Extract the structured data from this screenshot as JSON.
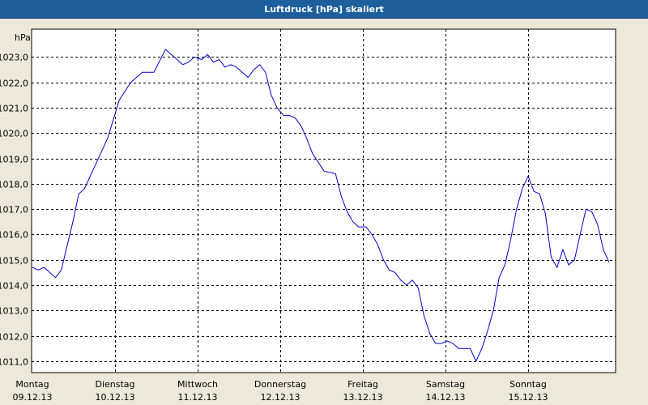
{
  "window": {
    "title": "Luftdruck [hPa] skaliert"
  },
  "colors": {
    "title_bar": "#1c5f9c",
    "background": "#ece9d8",
    "plot_background": "#ffffff",
    "line": "#0000cc",
    "grid": "#000000"
  },
  "chart_data": {
    "type": "line",
    "title": "Luftdruck [hPa] skaliert",
    "ylabel": "hPa",
    "xlabel": "",
    "ylim": [
      1010.55,
      1024.1
    ],
    "xlim": [
      "2013-12-09 00:00",
      "2013-12-16 00:00"
    ],
    "grid": true,
    "legend": "none",
    "y_ticks": [
      "1011,0",
      "1012,0",
      "1013,0",
      "1014,0",
      "1015,0",
      "1016,0",
      "1017,0",
      "1018,0",
      "1019,0",
      "1020,0",
      "1021,0",
      "1022,0",
      "1023,0"
    ],
    "x_ticks": [
      {
        "day": "Montag",
        "date": "09.12.13"
      },
      {
        "day": "Dienstag",
        "date": "10.12.13"
      },
      {
        "day": "Mittwoch",
        "date": "11.12.13"
      },
      {
        "day": "Donnerstag",
        "date": "12.12.13"
      },
      {
        "day": "Freitag",
        "date": "13.12.13"
      },
      {
        "day": "Samstag",
        "date": "14.12.13"
      },
      {
        "day": "Sonntag",
        "date": "15.12.13"
      }
    ],
    "series": [
      {
        "x": [
          "2013-12-09 00:00",
          "2013-12-09 01:41",
          "2013-12-09 03:22",
          "2013-12-09 05:02",
          "2013-12-09 06:43",
          "2013-12-09 08:24",
          "2013-12-09 11:46",
          "2013-12-09 13:27",
          "2013-12-09 15:07",
          "2013-12-09 18:29",
          "2013-12-09 21:51",
          "2013-12-10 01:13",
          "2013-12-10 04:34",
          "2013-12-10 07:56",
          "2013-12-10 09:37",
          "2013-12-10 11:18",
          "2013-12-10 14:40",
          "2013-12-10 18:01",
          "2013-12-10 19:42",
          "2013-12-10 21:23",
          "2013-12-10 23:04",
          "2013-12-11 01:13",
          "2013-12-11 02:54",
          "2013-12-11 04:34",
          "2013-12-11 06:15",
          "2013-12-11 07:56",
          "2013-12-11 09:37",
          "2013-12-11 11:18",
          "2013-12-11 12:58",
          "2013-12-11 14:39",
          "2013-12-11 16:20",
          "2013-12-11 18:01",
          "2013-12-11 19:42",
          "2013-12-11 21:23",
          "2013-12-11 23:04",
          "2013-12-12 00:56",
          "2013-12-12 02:37",
          "2013-12-12 04:18",
          "2013-12-12 05:58",
          "2013-12-12 07:39",
          "2013-12-12 09:20",
          "2013-12-12 12:42",
          "2013-12-12 16:03",
          "2013-12-12 17:44",
          "2013-12-12 19:25",
          "2013-12-12 21:06",
          "2013-12-12 22:47",
          "2013-12-13 00:56",
          "2013-12-13 02:37",
          "2013-12-13 04:18",
          "2013-12-13 05:58",
          "2013-12-13 07:39",
          "2013-12-13 09:20",
          "2013-12-13 11:01",
          "2013-12-13 12:42",
          "2013-12-13 14:23",
          "2013-12-13 16:03",
          "2013-12-13 17:44",
          "2013-12-13 19:25",
          "2013-12-13 21:06",
          "2013-12-13 22:47",
          "2013-12-14 00:28",
          "2013-12-14 02:09",
          "2013-12-14 03:50",
          "2013-12-14 05:30",
          "2013-12-14 07:11",
          "2013-12-14 08:52",
          "2013-12-14 10:33",
          "2013-12-14 12:14",
          "2013-12-14 13:55",
          "2013-12-14 15:35",
          "2013-12-14 17:16",
          "2013-12-14 18:57",
          "2013-12-14 20:38",
          "2013-12-14 22:19",
          "2013-12-15 00:00",
          "2013-12-15 01:41",
          "2013-12-15 03:22",
          "2013-12-15 05:02",
          "2013-12-15 06:43",
          "2013-12-15 08:24",
          "2013-12-15 10:05",
          "2013-12-15 11:46",
          "2013-12-15 13:27",
          "2013-12-15 15:07",
          "2013-12-15 16:48",
          "2013-12-15 18:29",
          "2013-12-15 20:10",
          "2013-12-15 21:51",
          "2013-12-15 23:32"
        ],
        "y": [
          1014.7,
          1014.6,
          1014.7,
          1014.5,
          1014.3,
          1014.6,
          1016.5,
          1017.6,
          1017.8,
          1018.8,
          1019.8,
          1021.3,
          1022.0,
          1022.4,
          1022.4,
          1022.4,
          1023.3,
          1022.9,
          1022.7,
          1022.8,
          1023.0,
          1022.9,
          1023.1,
          1022.8,
          1022.9,
          1022.6,
          1022.7,
          1022.6,
          1022.4,
          1022.2,
          1022.5,
          1022.7,
          1022.4,
          1021.5,
          1021.0,
          1020.7,
          1020.7,
          1020.6,
          1020.3,
          1019.8,
          1019.2,
          1018.5,
          1018.4,
          1017.5,
          1016.9,
          1016.5,
          1016.3,
          1016.3,
          1016.0,
          1015.6,
          1015.0,
          1014.6,
          1014.5,
          1014.2,
          1014.0,
          1014.2,
          1013.9,
          1012.8,
          1012.1,
          1011.7,
          1011.7,
          1011.8,
          1011.7,
          1011.5,
          1011.5,
          1011.5,
          1011.0,
          1011.5,
          1012.2,
          1013.0,
          1014.3,
          1014.8,
          1015.8,
          1017.0,
          1017.8,
          1018.3,
          1017.7,
          1017.6,
          1016.8,
          1015.1,
          1014.7,
          1015.4,
          1014.8,
          1015.0,
          1016.0,
          1017.0,
          1016.9,
          1016.4,
          1015.4,
          1014.9
        ]
      }
    ]
  }
}
